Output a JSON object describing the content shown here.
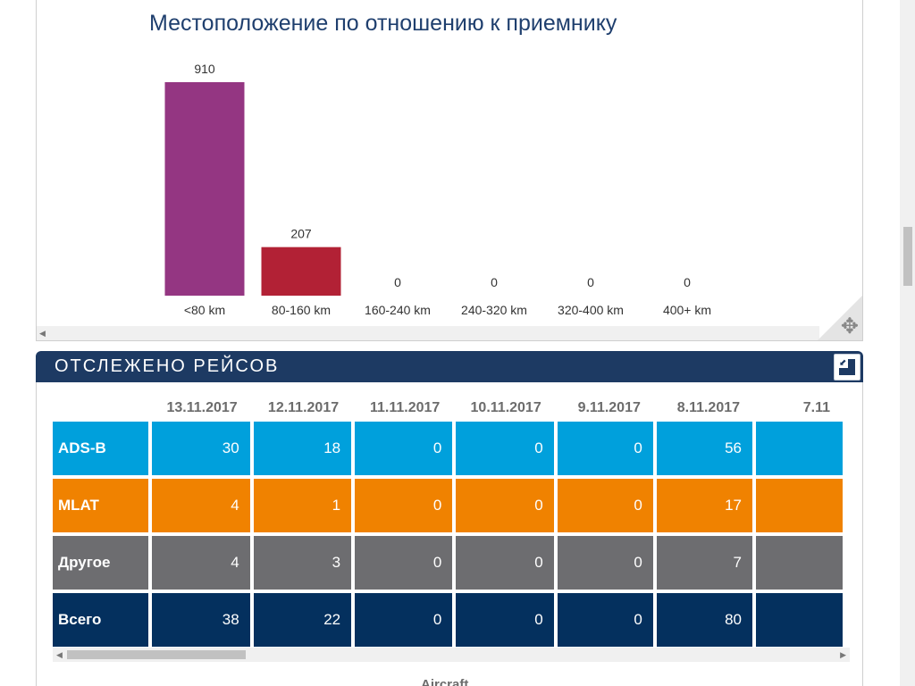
{
  "chart_data": {
    "type": "bar",
    "title": "Местоположение по отношению к приемнику",
    "categories": [
      "<80 km",
      "80-160 km",
      "160-240 km",
      "240-320 km",
      "320-400 km",
      "400+ km"
    ],
    "values": [
      910,
      207,
      0,
      0,
      0,
      0
    ],
    "colors": [
      "#943682",
      "#b22135",
      "#943682",
      "#943682",
      "#943682",
      "#943682"
    ],
    "ylim": [
      0,
      910
    ],
    "grid": false,
    "legend": "none"
  },
  "chart_panel": {
    "move_icon": "move-arrows-icon"
  },
  "flights": {
    "title": "ОТСЛЕЖЕНО РЕЙСОВ",
    "expand_icon": "expand-icon",
    "dates": [
      "13.11.2017",
      "12.11.2017",
      "11.11.2017",
      "10.11.2017",
      "9.11.2017",
      "8.11.2017",
      "7.11"
    ],
    "rows": [
      {
        "label": "ADS-B",
        "values": [
          "30",
          "18",
          "0",
          "0",
          "0",
          "56",
          ""
        ]
      },
      {
        "label": "MLAT",
        "values": [
          "4",
          "1",
          "0",
          "0",
          "0",
          "17",
          ""
        ]
      },
      {
        "label": "Другое",
        "values": [
          "4",
          "3",
          "0",
          "0",
          "0",
          "7",
          ""
        ]
      },
      {
        "label": "Всего",
        "values": [
          "38",
          "22",
          "0",
          "0",
          "0",
          "80",
          ""
        ]
      }
    ],
    "row_colors": {
      "adsb": "#00a0dc",
      "mlat": "#f08200",
      "other": "#6d6d70",
      "total": "#04305e"
    },
    "next_section_caption": "Aircraft"
  }
}
